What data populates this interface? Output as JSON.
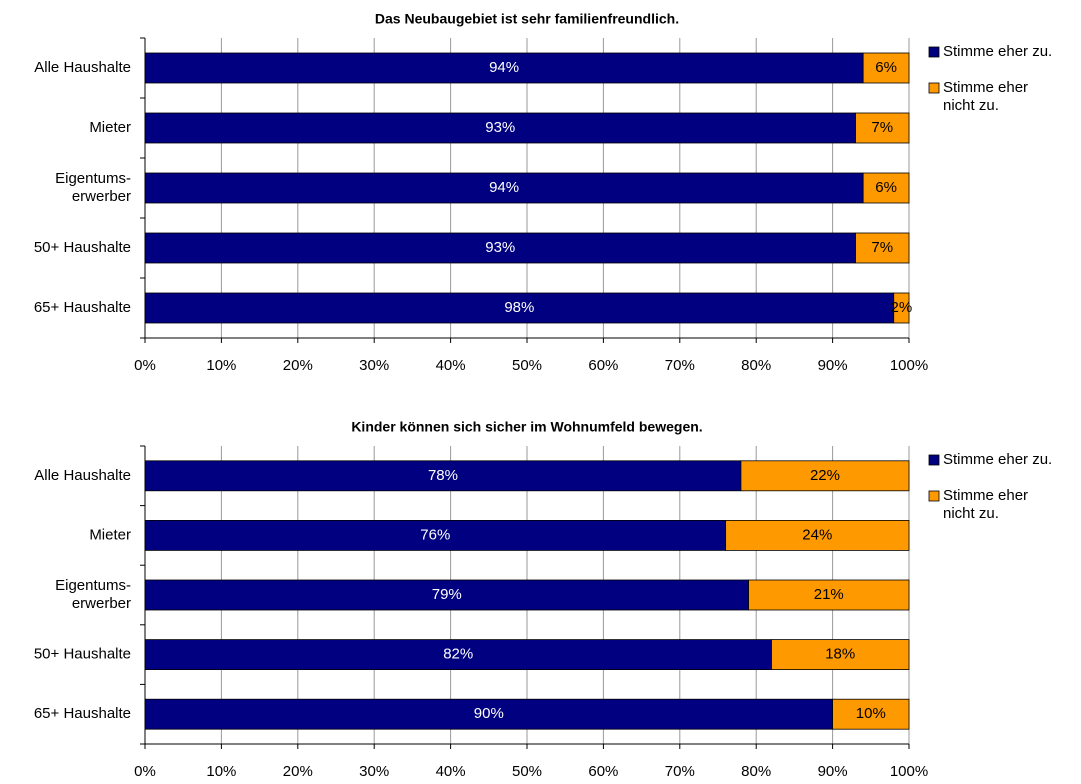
{
  "chart_data": [
    {
      "type": "stacked_barh",
      "title": "Das Neubaugebiet ist sehr familienfreundlich.",
      "categories": [
        "Alle Haushalte",
        "Mieter",
        "Eigentums-erwerber",
        "50+ Haushalte",
        "65+ Haushalte"
      ],
      "series": [
        {
          "name": "Stimme eher zu.",
          "color": "#000080",
          "values": [
            94,
            93,
            94,
            93,
            98
          ],
          "value_labels": [
            "94%",
            "93%",
            "94%",
            "93%",
            "98%"
          ]
        },
        {
          "name": "Stimme eher nicht zu.",
          "color": "#ff9900",
          "values": [
            6,
            7,
            6,
            7,
            2
          ],
          "value_labels": [
            "6%",
            "7%",
            "6%",
            "7%",
            "2%"
          ]
        }
      ],
      "xlim": [
        0,
        100
      ],
      "xticks": [
        {
          "value": 0,
          "label": "0%"
        },
        {
          "value": 10,
          "label": "10%"
        },
        {
          "value": 20,
          "label": "20%"
        },
        {
          "value": 30,
          "label": "30%"
        },
        {
          "value": 40,
          "label": "40%"
        },
        {
          "value": 50,
          "label": "50%"
        },
        {
          "value": 60,
          "label": "60%"
        },
        {
          "value": 70,
          "label": "70%"
        },
        {
          "value": 80,
          "label": "80%"
        },
        {
          "value": 90,
          "label": "90%"
        },
        {
          "value": 100,
          "label": "100%"
        }
      ],
      "grid": true,
      "legend": "right"
    },
    {
      "type": "stacked_barh",
      "title": "Kinder können sich sicher im Wohnumfeld bewegen.",
      "categories": [
        "Alle Haushalte",
        "Mieter",
        "Eigentums-erwerber",
        "50+ Haushalte",
        "65+ Haushalte"
      ],
      "series": [
        {
          "name": "Stimme eher zu.",
          "color": "#000080",
          "values": [
            78,
            76,
            79,
            82,
            90
          ],
          "value_labels": [
            "78%",
            "76%",
            "79%",
            "82%",
            "90%"
          ]
        },
        {
          "name": "Stimme eher nicht zu.",
          "color": "#ff9900",
          "values": [
            22,
            24,
            21,
            18,
            10
          ],
          "value_labels": [
            "22%",
            "24%",
            "21%",
            "18%",
            "10%"
          ]
        }
      ],
      "xlim": [
        0,
        100
      ],
      "xticks": [
        {
          "value": 0,
          "label": "0%"
        },
        {
          "value": 10,
          "label": "10%"
        },
        {
          "value": 20,
          "label": "20%"
        },
        {
          "value": 30,
          "label": "30%"
        },
        {
          "value": 40,
          "label": "40%"
        },
        {
          "value": 50,
          "label": "50%"
        },
        {
          "value": 60,
          "label": "60%"
        },
        {
          "value": 70,
          "label": "70%"
        },
        {
          "value": 80,
          "label": "80%"
        },
        {
          "value": 90,
          "label": "90%"
        },
        {
          "value": 100,
          "label": "100%"
        }
      ],
      "grid": true,
      "legend": "right"
    }
  ]
}
